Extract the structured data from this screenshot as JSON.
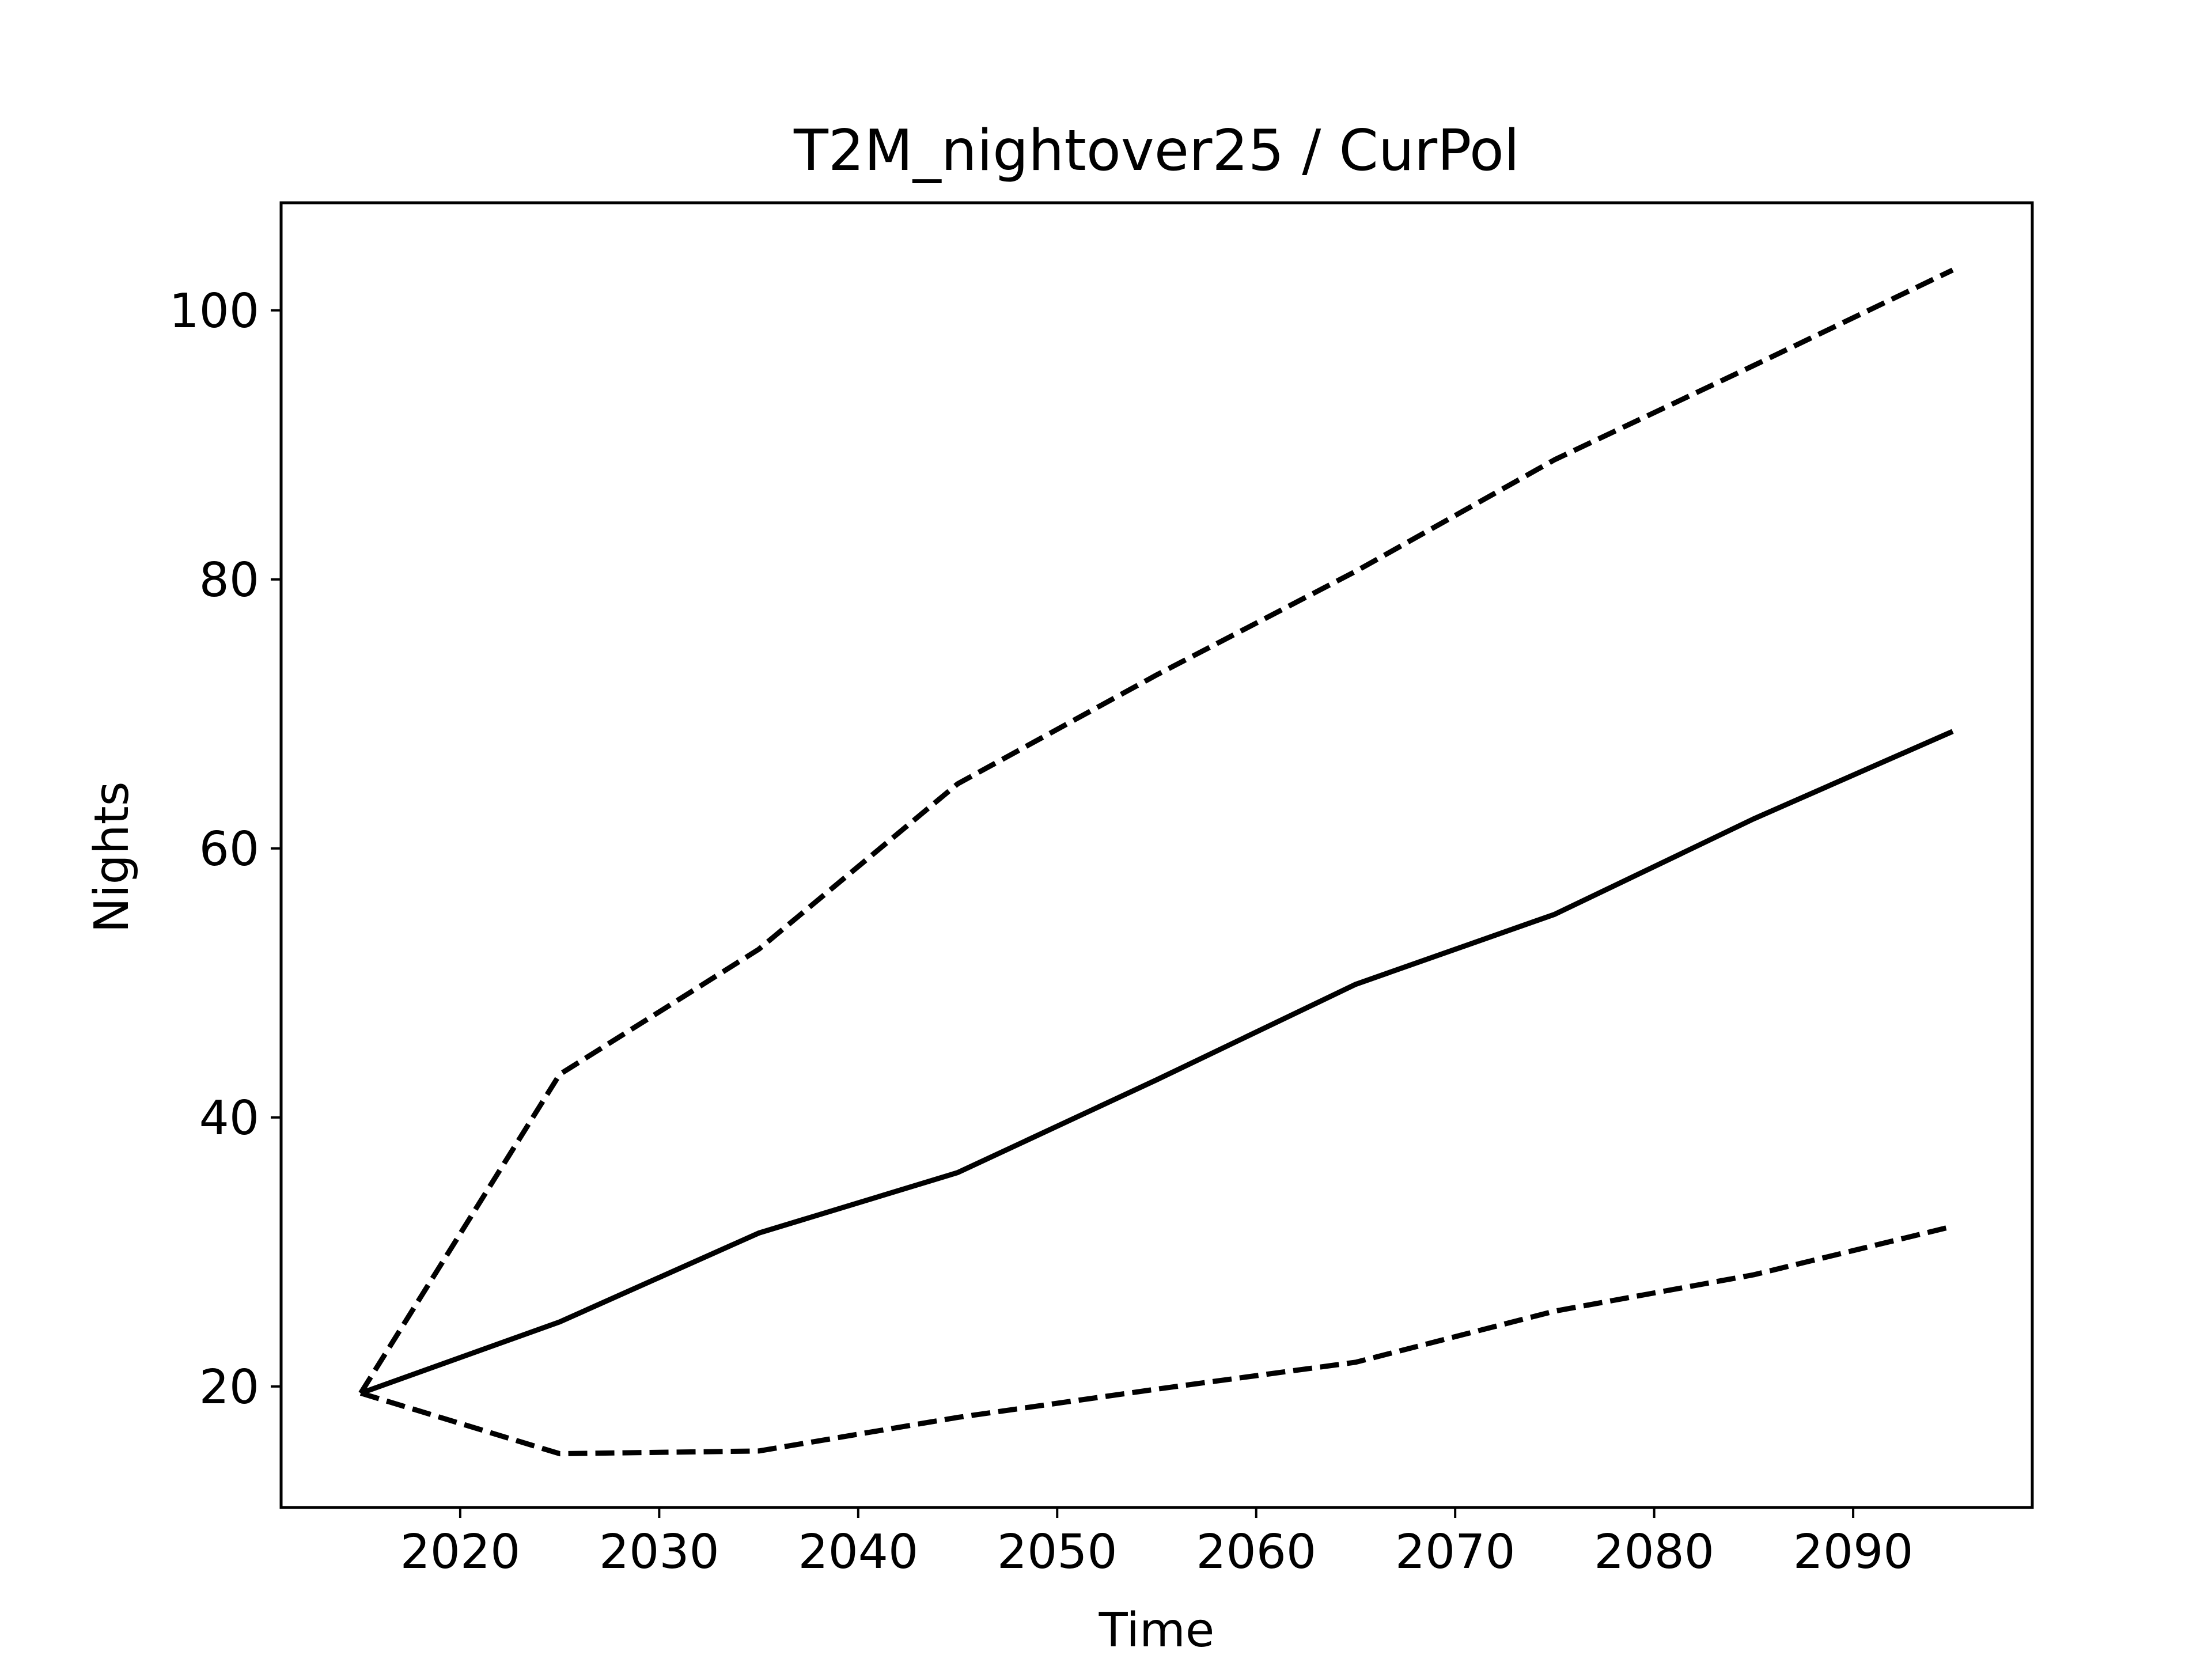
{
  "chart_data": {
    "type": "line",
    "title": "T2M_nightover25 / CurPol",
    "xlabel": "Time",
    "ylabel": "Nights",
    "x": [
      2015,
      2025,
      2035,
      2045,
      2055,
      2065,
      2075,
      2085,
      2095
    ],
    "series": [
      {
        "style": "dashed",
        "values": [
          19.5,
          43.2,
          52.5,
          64.8,
          72.9,
          80.6,
          88.9,
          95.9,
          103.0
        ]
      },
      {
        "style": "solid",
        "values": [
          19.5,
          24.8,
          31.4,
          35.9,
          42.8,
          49.9,
          55.1,
          62.2,
          68.7
        ]
      },
      {
        "style": "dashed",
        "values": [
          19.5,
          15.0,
          15.2,
          17.7,
          19.8,
          21.8,
          25.6,
          28.3,
          31.9
        ]
      }
    ],
    "xlim": [
      2011,
      2099
    ],
    "ylim": [
      11,
      108
    ],
    "xticks": [
      2020,
      2030,
      2040,
      2050,
      2060,
      2070,
      2080,
      2090
    ],
    "yticks": [
      20,
      40,
      60,
      80,
      100
    ],
    "line_color": "#000000",
    "grid": false,
    "legend": "none"
  }
}
